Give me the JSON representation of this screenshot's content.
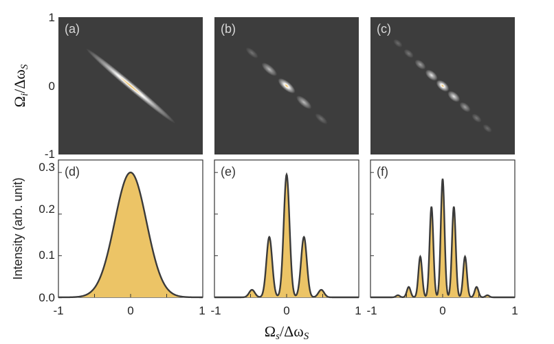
{
  "chart_data": [
    {
      "type": "heatmap",
      "panel": "(a)",
      "peaks": [
        {
          "s": 0.0,
          "amp": 1.0
        }
      ],
      "width": 0.28,
      "xlim": [
        -1,
        1
      ],
      "ylim": [
        -1,
        1
      ],
      "yticks": [
        "1",
        "0",
        "-1"
      ],
      "ylabel_base": "Ω",
      "ylabel_sub1": "i",
      "ylabel_den": "/Δω",
      "ylabel_sub2": "S"
    },
    {
      "type": "heatmap",
      "panel": "(b)",
      "peaks": [
        {
          "s": -0.48,
          "amp": 0.06
        },
        {
          "s": -0.24,
          "amp": 0.5
        },
        {
          "s": 0.0,
          "amp": 1.0
        },
        {
          "s": 0.24,
          "amp": 0.5
        },
        {
          "s": 0.48,
          "amp": 0.06
        }
      ],
      "width": 0.06,
      "xlim": [
        -1,
        1
      ],
      "ylim": [
        -1,
        1
      ]
    },
    {
      "type": "heatmap",
      "panel": "(c)",
      "peaks": [
        {
          "s": -0.62,
          "amp": 0.02
        },
        {
          "s": -0.47,
          "amp": 0.09
        },
        {
          "s": -0.31,
          "amp": 0.34
        },
        {
          "s": -0.155,
          "amp": 0.76
        },
        {
          "s": 0.0,
          "amp": 1.0
        },
        {
          "s": 0.155,
          "amp": 0.76
        },
        {
          "s": 0.31,
          "amp": 0.34
        },
        {
          "s": 0.47,
          "amp": 0.09
        },
        {
          "s": 0.62,
          "amp": 0.02
        }
      ],
      "width": 0.038,
      "xlim": [
        -1,
        1
      ],
      "ylim": [
        -1,
        1
      ]
    },
    {
      "type": "area",
      "panel": "(d)",
      "peaks": [
        {
          "x": 0.0,
          "y": 0.3
        }
      ],
      "width": 0.22,
      "xlim": [
        -1,
        1
      ],
      "ylim": [
        0,
        0.33
      ],
      "yticks": [
        "0.0",
        "0.1",
        "0.2",
        "0.3"
      ],
      "xticks": [
        "-1",
        "0",
        "1"
      ],
      "ylabel": "Intensity (arb. unit)"
    },
    {
      "type": "area",
      "panel": "(e)",
      "peaks": [
        {
          "x": -0.48,
          "y": 0.018
        },
        {
          "x": -0.24,
          "y": 0.145
        },
        {
          "x": 0.0,
          "y": 0.295
        },
        {
          "x": 0.24,
          "y": 0.145
        },
        {
          "x": 0.48,
          "y": 0.018
        }
      ],
      "width": 0.04,
      "xlim": [
        -1,
        1
      ],
      "ylim": [
        0,
        0.33
      ],
      "xticks": [
        "-1",
        "0",
        "1"
      ]
    },
    {
      "type": "area",
      "panel": "(f)",
      "peaks": [
        {
          "x": -0.62,
          "y": 0.005
        },
        {
          "x": -0.47,
          "y": 0.025
        },
        {
          "x": -0.31,
          "y": 0.098
        },
        {
          "x": -0.155,
          "y": 0.218
        },
        {
          "x": 0.0,
          "y": 0.285
        },
        {
          "x": 0.155,
          "y": 0.218
        },
        {
          "x": 0.31,
          "y": 0.098
        },
        {
          "x": 0.47,
          "y": 0.025
        },
        {
          "x": 0.62,
          "y": 0.005
        }
      ],
      "width": 0.026,
      "xlim": [
        -1,
        1
      ],
      "ylim": [
        0,
        0.33
      ],
      "xticks": [
        "-1",
        "0",
        "1"
      ],
      "xlabel_base": "Ω",
      "xlabel_sub1": "s",
      "xlabel_den": "/Δω",
      "xlabel_sub2": "S"
    }
  ],
  "colors": {
    "heatmap_bg": "#3d3d3d",
    "fill": "#ecc466",
    "curve": "#3a3a3a",
    "hot_core": "#f0b848"
  }
}
